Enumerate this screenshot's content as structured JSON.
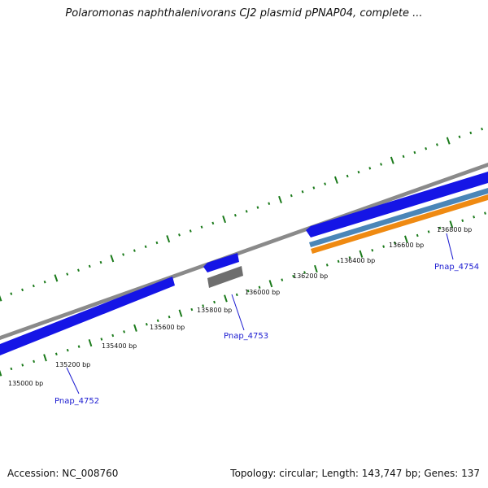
{
  "title": "Polaromonas naphthalenivorans CJ2 plasmid pPNAP04, complete ...",
  "footer": {
    "accession": "Accession: NC_008760",
    "summary": "Topology: circular; Length: 143,747 bp; Genes: 137"
  },
  "colors": {
    "cds": "#1515e6",
    "backbone": "#8a8a8a",
    "gene_gray": "#6e6e6e",
    "gene_teal": "#4a86b8",
    "gene_orange": "#ef8a12",
    "tick": "#1a7a1a",
    "label": "#1a1ad0"
  },
  "ticks": [
    {
      "label": "135000 bp"
    },
    {
      "label": "135200 bp"
    },
    {
      "label": "135400 bp"
    },
    {
      "label": "135600 bp"
    },
    {
      "label": "135800 bp"
    },
    {
      "label": "136000 bp"
    },
    {
      "label": "136200 bp"
    },
    {
      "label": "136400 bp"
    },
    {
      "label": "136600 bp"
    },
    {
      "label": "136800 bp"
    }
  ],
  "genes": [
    {
      "label": "Pnap_4752"
    },
    {
      "label": "Pnap_4753"
    },
    {
      "label": "Pnap_4754"
    }
  ]
}
